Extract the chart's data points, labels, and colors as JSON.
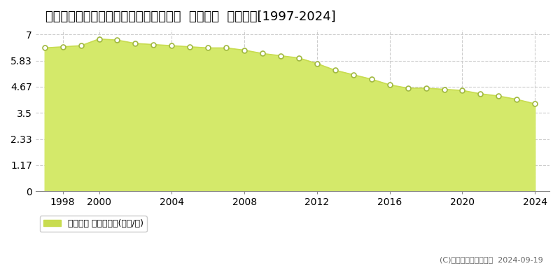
{
  "title": "鳥取県鳥取市上味野字上り立７４番１外  基準地価  地価推移[1997-2024]",
  "years": [
    1997,
    1998,
    1999,
    2000,
    2001,
    2002,
    2003,
    2004,
    2005,
    2006,
    2007,
    2008,
    2009,
    2010,
    2011,
    2012,
    2013,
    2014,
    2015,
    2016,
    2017,
    2018,
    2019,
    2020,
    2021,
    2022,
    2023,
    2024
  ],
  "values": [
    6.4,
    6.45,
    6.5,
    6.8,
    6.75,
    6.6,
    6.55,
    6.5,
    6.45,
    6.4,
    6.4,
    6.3,
    6.15,
    6.05,
    5.95,
    5.7,
    5.4,
    5.2,
    5.0,
    4.75,
    4.6,
    4.6,
    4.55,
    4.5,
    4.35,
    4.25,
    4.1,
    3.9
  ],
  "fill_color": "#d4e96a",
  "line_color": "#c8dc50",
  "marker_color": "#ffffff",
  "marker_edge_color": "#a0b840",
  "bg_color": "#ffffff",
  "plot_bg_color": "#ffffff",
  "grid_color": "#cccccc",
  "yticks": [
    0,
    1.17,
    2.33,
    3.5,
    4.67,
    5.83,
    7
  ],
  "ytick_labels": [
    "0",
    "1.17",
    "2.33",
    "3.5",
    "4.67",
    "5.83",
    "7"
  ],
  "xtick_years": [
    1998,
    2000,
    2004,
    2008,
    2012,
    2016,
    2020,
    2024
  ],
  "xlim": [
    1996.5,
    2024.8
  ],
  "ylim": [
    0,
    7.2
  ],
  "legend_label": "基準地価 平均坪単価(万円/坪)",
  "legend_color": "#c8dc50",
  "copyright_text": "(C)土地価格ドットコム  2024-09-19",
  "title_fontsize": 13,
  "axis_fontsize": 10
}
